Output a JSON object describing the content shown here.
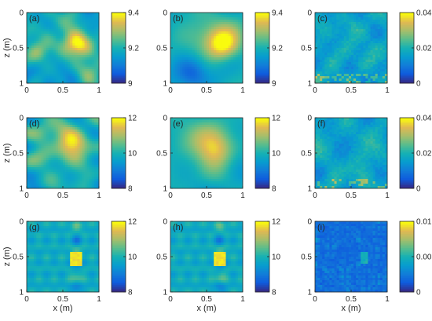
{
  "chart_data": {
    "type": "heatmap",
    "colormap": "parula",
    "grid": false,
    "colorbar_placement": "right",
    "panels": [
      {
        "label": "(a)",
        "row": 0,
        "col": 0,
        "clim": [
          9,
          9.4
        ],
        "cbar_ticks": [
          "9",
          "9.2",
          "9.4"
        ],
        "pattern": "rough",
        "seed": 11,
        "noise": 0.55,
        "blobs": [
          {
            "cx": 0.72,
            "cz": 0.45,
            "r": 0.14,
            "a": 0.55
          },
          {
            "cx": 0.15,
            "cz": 0.55,
            "r": 0.12,
            "a": 0.25
          }
        ]
      },
      {
        "label": "(b)",
        "row": 0,
        "col": 1,
        "clim": [
          9,
          9.4
        ],
        "cbar_ticks": [
          "9",
          "9.2",
          "9.4"
        ],
        "pattern": "smooth",
        "seed": 12,
        "noise": 0.35,
        "blobs": [
          {
            "cx": 0.72,
            "cz": 0.45,
            "r": 0.16,
            "a": 0.55
          },
          {
            "cx": 0.45,
            "cz": 0.3,
            "r": 0.2,
            "a": 0.25
          },
          {
            "cx": 0.3,
            "cz": 0.85,
            "r": 0.15,
            "a": -0.3
          }
        ]
      },
      {
        "label": "(c)",
        "row": 0,
        "col": 2,
        "clim": [
          0,
          0.04
        ],
        "cbar_ticks": [
          "0",
          "0.02",
          "0.04"
        ],
        "pattern": "error",
        "seed": 13,
        "noise": 0.35
      },
      {
        "label": "(d)",
        "row": 1,
        "col": 0,
        "clim": [
          8,
          12
        ],
        "cbar_ticks": [
          "8",
          "10",
          "12"
        ],
        "pattern": "rough",
        "seed": 21,
        "noise": 0.65,
        "blobs": [
          {
            "cx": 0.62,
            "cz": 0.4,
            "r": 0.16,
            "a": 0.55
          },
          {
            "cx": 0.2,
            "cz": 0.2,
            "r": 0.14,
            "a": 0.3
          }
        ]
      },
      {
        "label": "(e)",
        "row": 1,
        "col": 1,
        "clim": [
          8,
          12
        ],
        "cbar_ticks": [
          "8",
          "10",
          "12"
        ],
        "pattern": "smooth",
        "seed": 22,
        "noise": 0.35,
        "blobs": [
          {
            "cx": 0.62,
            "cz": 0.45,
            "r": 0.18,
            "a": 0.45
          },
          {
            "cx": 0.3,
            "cz": 0.3,
            "r": 0.2,
            "a": 0.2
          }
        ]
      },
      {
        "label": "(f)",
        "row": 1,
        "col": 2,
        "clim": [
          0,
          0.04
        ],
        "cbar_ticks": [
          "0",
          "0.02",
          "0.04"
        ],
        "pattern": "error",
        "seed": 23,
        "noise": 0.35
      },
      {
        "label": "(g)",
        "row": 2,
        "col": 0,
        "clim": [
          8,
          12
        ],
        "cbar_ticks": [
          "8",
          "10",
          "12"
        ],
        "pattern": "square",
        "seed": 31,
        "square": {
          "x0": 0.6,
          "x1": 0.78,
          "z0": 0.42,
          "z1": 0.62
        }
      },
      {
        "label": "(h)",
        "row": 2,
        "col": 1,
        "clim": [
          8,
          12
        ],
        "cbar_ticks": [
          "8",
          "10",
          "12"
        ],
        "pattern": "square",
        "seed": 32,
        "square": {
          "x0": 0.6,
          "x1": 0.78,
          "z0": 0.42,
          "z1": 0.62
        }
      },
      {
        "label": "(i)",
        "row": 2,
        "col": 2,
        "clim": [
          0,
          0.01
        ],
        "cbar_ticks": [
          "0",
          "0.005",
          "0.01"
        ],
        "pattern": "ripple",
        "seed": 33
      }
    ],
    "x_range": [
      0,
      1
    ],
    "z_range": [
      0,
      1
    ],
    "x_ticks": [
      "0",
      "0.5",
      "1"
    ],
    "z_ticks": [
      "0",
      "0.5",
      "1"
    ],
    "xlabel": "x (m)",
    "zlabel": "z (m)"
  }
}
